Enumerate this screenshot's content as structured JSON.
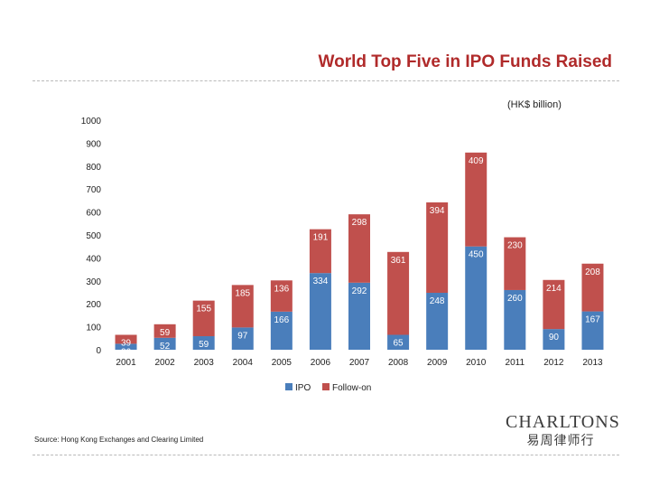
{
  "header": {
    "title": "World Top Five in IPO Funds Raised",
    "unit_note": "(HK$ billion)"
  },
  "footer": {
    "source": "Source: Hong Kong Exchanges and Clearing Limited",
    "logo_main": "CHARLTONS",
    "logo_sub": "易周律师行"
  },
  "colors": {
    "ipo": "#4a7ebb",
    "follow_on": "#c0504d"
  },
  "chart_data": {
    "type": "bar",
    "stacked": true,
    "title": "World Top Five in IPO Funds Raised",
    "ylabel": "(HK$ billion)",
    "xlabel": "",
    "ylim": [
      0,
      1000
    ],
    "yticks": [
      0,
      100,
      200,
      300,
      400,
      500,
      600,
      700,
      800,
      900,
      1000
    ],
    "categories": [
      "2001",
      "2002",
      "2003",
      "2004",
      "2005",
      "2006",
      "2007",
      "2008",
      "2009",
      "2010",
      "2011",
      "2012",
      "2013"
    ],
    "series": [
      {
        "name": "IPO",
        "values": [
          26,
          52,
          59,
          97,
          166,
          334,
          292,
          65,
          248,
          450,
          260,
          90,
          167
        ]
      },
      {
        "name": "Follow-on",
        "values": [
          39,
          59,
          155,
          185,
          136,
          191,
          298,
          361,
          394,
          409,
          230,
          214,
          208
        ]
      }
    ],
    "legend": [
      "IPO",
      "Follow-on"
    ],
    "legend_position": "bottom",
    "grid": false
  }
}
